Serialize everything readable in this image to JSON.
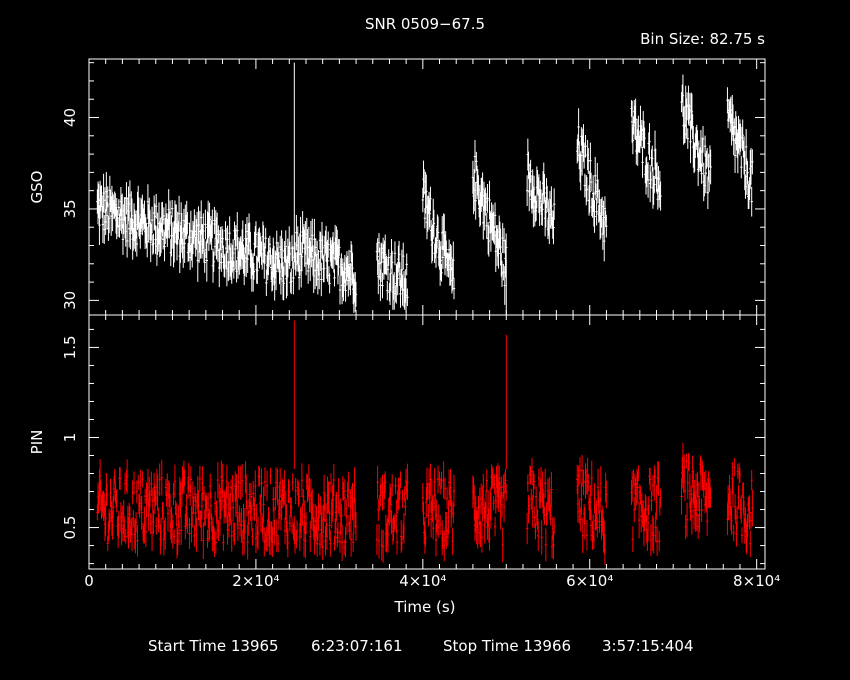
{
  "header": {
    "title": "SNR 0509−67.5",
    "bin_size": "Bin Size: 82.75 s"
  },
  "footer": {
    "start_label": "Start Time 13965",
    "start_time": "6:23:07:161",
    "stop_label": "Stop Time 13966",
    "stop_time": "3:57:15:404"
  },
  "chart_data": [
    {
      "type": "scatter",
      "panel": "top",
      "ylabel": "GSO",
      "xlabel": "",
      "xlim": [
        0,
        81000
      ],
      "ylim": [
        29.2,
        43.2
      ],
      "yticks": [
        30,
        35,
        40
      ],
      "ytick_labels": [
        "30",
        "35",
        "40"
      ],
      "color": "#ffffff",
      "series": [
        {
          "segments": [
            {
              "x0": 1000,
              "x1": 24500,
              "y0": 35.0,
              "y1": 31.8
            },
            {
              "x0": 24600,
              "x1": 32000,
              "y0": 32.6,
              "y1": 31.6
            },
            {
              "x0": 34500,
              "x1": 38200,
              "y0": 32.2,
              "y1": 31.0
            },
            {
              "x0": 40000,
              "x1": 43800,
              "y0": 35.6,
              "y1": 30.8
            },
            {
              "x0": 46000,
              "x1": 50000,
              "y0": 37.0,
              "y1": 31.8
            },
            {
              "x0": 52500,
              "x1": 55800,
              "y0": 37.0,
              "y1": 34.0
            },
            {
              "x0": 58500,
              "x1": 62000,
              "y0": 38.5,
              "y1": 34.0
            },
            {
              "x0": 65000,
              "x1": 68500,
              "y0": 39.5,
              "y1": 36.5
            },
            {
              "x0": 71000,
              "x1": 74500,
              "y0": 40.5,
              "y1": 36.5
            },
            {
              "x0": 76500,
              "x1": 79500,
              "y0": 40.0,
              "y1": 36.3
            }
          ],
          "spikes": [
            {
              "x": 24600,
              "y": 43.0
            },
            {
              "x": 50000,
              "y": 29.2
            }
          ]
        }
      ]
    },
    {
      "type": "scatter",
      "panel": "bottom",
      "ylabel": "PIN",
      "xlabel": "Time (s)",
      "xlim": [
        0,
        81000
      ],
      "ylim": [
        0.27,
        1.68
      ],
      "yticks": [
        0.5,
        1,
        1.5
      ],
      "ytick_labels": [
        "0.5",
        "1",
        "1.5"
      ],
      "xticks": [
        0,
        20000,
        40000,
        60000,
        80000
      ],
      "xtick_labels": [
        "0",
        "2×10⁴",
        "4×10⁴",
        "6×10⁴",
        "8×10⁴"
      ],
      "color": "#ff0000",
      "series": [
        {
          "segments": [
            {
              "x0": 1000,
              "x1": 24500,
              "y0": 0.6,
              "y1": 0.6
            },
            {
              "x0": 24600,
              "x1": 32000,
              "y0": 0.58,
              "y1": 0.58
            },
            {
              "x0": 34500,
              "x1": 38200,
              "y0": 0.58,
              "y1": 0.58
            },
            {
              "x0": 40000,
              "x1": 43800,
              "y0": 0.6,
              "y1": 0.58
            },
            {
              "x0": 46000,
              "x1": 50000,
              "y0": 0.62,
              "y1": 0.58
            },
            {
              "x0": 52500,
              "x1": 55800,
              "y0": 0.65,
              "y1": 0.55
            },
            {
              "x0": 58500,
              "x1": 62000,
              "y0": 0.65,
              "y1": 0.55
            },
            {
              "x0": 65000,
              "x1": 68500,
              "y0": 0.62,
              "y1": 0.6
            },
            {
              "x0": 71000,
              "x1": 74500,
              "y0": 0.7,
              "y1": 0.64
            },
            {
              "x0": 76500,
              "x1": 79500,
              "y0": 0.68,
              "y1": 0.58
            }
          ],
          "spikes": [
            {
              "x": 24600,
              "y": 1.65
            },
            {
              "x": 50000,
              "y": 1.57
            }
          ]
        }
      ]
    }
  ]
}
